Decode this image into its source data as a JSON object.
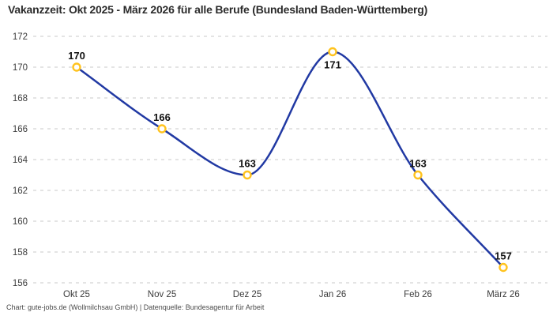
{
  "chart": {
    "title": "Vakanzzeit: Okt 2025 - März 2026 für alle Berufe (Bundesland Baden-Württemberg)",
    "footer": "Chart: gute-jobs.de (Wollmilchsau GmbH) | Datenquelle: Bundesagentur für Arbeit"
  },
  "chart_data": {
    "type": "line",
    "title": "Vakanzzeit: Okt 2025 - März 2026 für alle Berufe (Bundesland Baden-Württemberg)",
    "categories": [
      "Okt 25",
      "Nov 25",
      "Dez 25",
      "Jan 26",
      "Feb 26",
      "März 26"
    ],
    "values": [
      170,
      166,
      163,
      171,
      163,
      157
    ],
    "data_labels": [
      "170",
      "166",
      "163",
      "171",
      "163",
      "157"
    ],
    "xlabel": "",
    "ylabel": "",
    "ylim": [
      156,
      172
    ],
    "y_ticks": [
      172,
      170,
      168,
      166,
      164,
      162,
      160,
      158,
      156
    ],
    "grid": "horizontal-dashed",
    "legend_position": "none",
    "curve_style": "smooth-monotone",
    "marker_style": "open-circle",
    "attribution": "Chart: gute-jobs.de (Wollmilchsau GmbH) | Datenquelle: Bundesagentur für Arbeit",
    "colors": {
      "line": "#2139a3",
      "marker_stroke": "#ffc31e",
      "marker_fill": "#ffffff",
      "grid": "#c9c9c9",
      "title_text": "#2b2b2b",
      "tick_text": "#3c3c3c",
      "data_label_text": "#111111",
      "footer_text": "#4a4a4a",
      "background": "#ffffff"
    }
  }
}
